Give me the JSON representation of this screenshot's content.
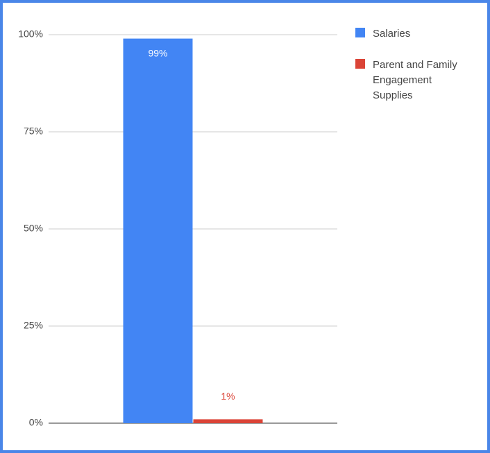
{
  "chart_data": {
    "type": "bar",
    "categories": [
      null
    ],
    "series": [
      {
        "name": "Salaries",
        "color": "#4285f4",
        "values": [
          99
        ],
        "value_labels": [
          "99%"
        ]
      },
      {
        "name": "Parent and Family Engagement Supplies",
        "color": "#db4437",
        "values": [
          1
        ],
        "value_labels": [
          "1%"
        ]
      }
    ],
    "ylim": [
      0,
      100
    ],
    "yticks": [
      {
        "value": 0,
        "label": "0%"
      },
      {
        "value": 25,
        "label": "25%"
      },
      {
        "value": 50,
        "label": "50%"
      },
      {
        "value": 75,
        "label": "75%"
      },
      {
        "value": 100,
        "label": "100%"
      }
    ],
    "grid": true,
    "legend": "right"
  }
}
